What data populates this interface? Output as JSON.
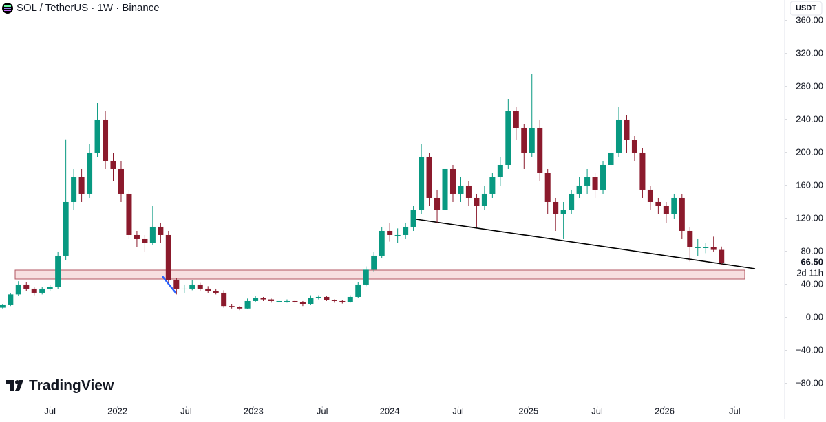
{
  "chart_data": {
    "type": "candlestick",
    "title": "SOL / TetherUS · 1W · Binance",
    "brand": "TradingView",
    "currency": "USDT",
    "last_price_label": "66.50",
    "countdown": "2d 11h",
    "up_color": "#089981",
    "down_color": "#8b1a2c",
    "x": [
      0,
      3,
      6,
      9,
      12,
      15,
      18,
      21,
      24,
      27,
      30,
      33,
      36,
      39,
      42,
      45,
      48,
      51,
      54,
      57,
      60,
      63,
      66,
      69,
      72,
      75,
      78,
      81,
      84,
      87,
      90,
      93,
      96,
      99,
      102,
      105,
      108,
      111,
      114,
      117,
      120,
      123,
      126,
      129,
      132,
      135,
      138,
      141,
      144,
      147,
      150,
      153,
      156,
      159,
      162,
      165,
      168,
      171,
      174,
      177,
      180,
      183,
      186,
      189,
      192,
      195,
      198,
      201,
      204,
      207,
      210,
      213,
      216,
      219,
      222,
      225,
      228,
      231,
      234,
      237,
      240,
      243,
      246,
      249,
      252,
      255,
      258,
      261,
      264,
      267,
      270,
      273
    ],
    "open": [
      12,
      15,
      28,
      40,
      35,
      30,
      35,
      37,
      75,
      140,
      170,
      150,
      200,
      240,
      190,
      180,
      150,
      100,
      95,
      90,
      110,
      100,
      45,
      35,
      35,
      40,
      35,
      32,
      30,
      14,
      13,
      11,
      20,
      24,
      22,
      20,
      20,
      20,
      19,
      16,
      24,
      25,
      21,
      20,
      19,
      25,
      40,
      58,
      75,
      105,
      100,
      100,
      110,
      130,
      195,
      145,
      130,
      180,
      150,
      160,
      145,
      135,
      150,
      170,
      185,
      250,
      230,
      200,
      230,
      175,
      140,
      125,
      130,
      150,
      160,
      170,
      155,
      185,
      200,
      240,
      215,
      200,
      155,
      140,
      135,
      125,
      145,
      105,
      85,
      85,
      85,
      82
    ],
    "high": [
      16,
      30,
      44,
      43,
      37,
      37,
      40,
      80,
      216,
      180,
      180,
      210,
      260,
      250,
      200,
      190,
      155,
      105,
      100,
      135,
      115,
      105,
      48,
      40,
      45,
      42,
      38,
      35,
      33,
      16,
      14,
      23,
      26,
      25,
      23,
      22,
      22,
      21,
      20,
      27,
      27,
      26,
      22,
      21,
      27,
      43,
      62,
      80,
      110,
      115,
      108,
      115,
      135,
      210,
      200,
      155,
      190,
      185,
      170,
      165,
      150,
      160,
      175,
      195,
      265,
      255,
      235,
      295,
      240,
      180,
      145,
      140,
      155,
      170,
      180,
      175,
      190,
      215,
      255,
      245,
      220,
      205,
      160,
      145,
      140,
      150,
      150,
      110,
      95,
      90,
      98,
      86
    ],
    "low": [
      11,
      14,
      26,
      32,
      27,
      28,
      32,
      35,
      70,
      130,
      140,
      145,
      195,
      180,
      165,
      140,
      95,
      85,
      80,
      88,
      90,
      42,
      28,
      30,
      33,
      32,
      30,
      28,
      12,
      11,
      9,
      10,
      19,
      20,
      18,
      18,
      18,
      17,
      14,
      15,
      22,
      20,
      18,
      17,
      18,
      24,
      38,
      55,
      72,
      92,
      90,
      95,
      105,
      125,
      135,
      115,
      125,
      140,
      140,
      135,
      110,
      130,
      145,
      160,
      180,
      215,
      180,
      195,
      165,
      125,
      105,
      95,
      125,
      145,
      150,
      145,
      150,
      180,
      195,
      200,
      190,
      145,
      130,
      125,
      115,
      120,
      95,
      68,
      75,
      78,
      80,
      64
    ],
    "close": [
      15,
      28,
      40,
      35,
      30,
      35,
      37,
      75,
      140,
      170,
      150,
      200,
      240,
      190,
      180,
      150,
      100,
      95,
      90,
      110,
      100,
      45,
      35,
      35,
      40,
      35,
      32,
      30,
      14,
      13,
      11,
      20,
      24,
      22,
      20,
      20,
      20,
      19,
      16,
      24,
      25,
      21,
      20,
      19,
      25,
      40,
      58,
      75,
      105,
      100,
      100,
      110,
      130,
      195,
      145,
      130,
      180,
      150,
      160,
      145,
      135,
      150,
      170,
      185,
      250,
      230,
      200,
      230,
      175,
      140,
      125,
      130,
      150,
      160,
      170,
      155,
      185,
      200,
      240,
      215,
      200,
      155,
      140,
      135,
      125,
      145,
      105,
      85,
      85,
      85,
      82,
      66.5
    ],
    "xlim": [
      -1,
      297
    ],
    "xticks": [
      {
        "value": 18,
        "label": "Jul"
      },
      {
        "value": 43.6,
        "label": "2022"
      },
      {
        "value": 69.7,
        "label": "Jul"
      },
      {
        "value": 95.3,
        "label": "2023"
      },
      {
        "value": 121.4,
        "label": "Jul"
      },
      {
        "value": 147,
        "label": "2024"
      },
      {
        "value": 173,
        "label": "Jul"
      },
      {
        "value": 199.7,
        "label": "2025"
      },
      {
        "value": 225.8,
        "label": "Jul"
      },
      {
        "value": 251.4,
        "label": "2026"
      },
      {
        "value": 278,
        "label": "Jul"
      }
    ],
    "ylim": [
      -106.7,
      385
    ],
    "yticks": [
      {
        "value": 360,
        "label": "360.00"
      },
      {
        "value": 320,
        "label": "320.00"
      },
      {
        "value": 280,
        "label": "280.00"
      },
      {
        "value": 240,
        "label": "240.00"
      },
      {
        "value": 200,
        "label": "200.00"
      },
      {
        "value": 160,
        "label": "160.00"
      },
      {
        "value": 120,
        "label": "120.00"
      },
      {
        "value": 80,
        "label": "80.00"
      },
      {
        "value": 40,
        "label": "40.00"
      },
      {
        "value": 0,
        "label": "0.00"
      },
      {
        "value": -40,
        "label": "−40.00"
      },
      {
        "value": -80,
        "label": "−80.00"
      }
    ]
  }
}
